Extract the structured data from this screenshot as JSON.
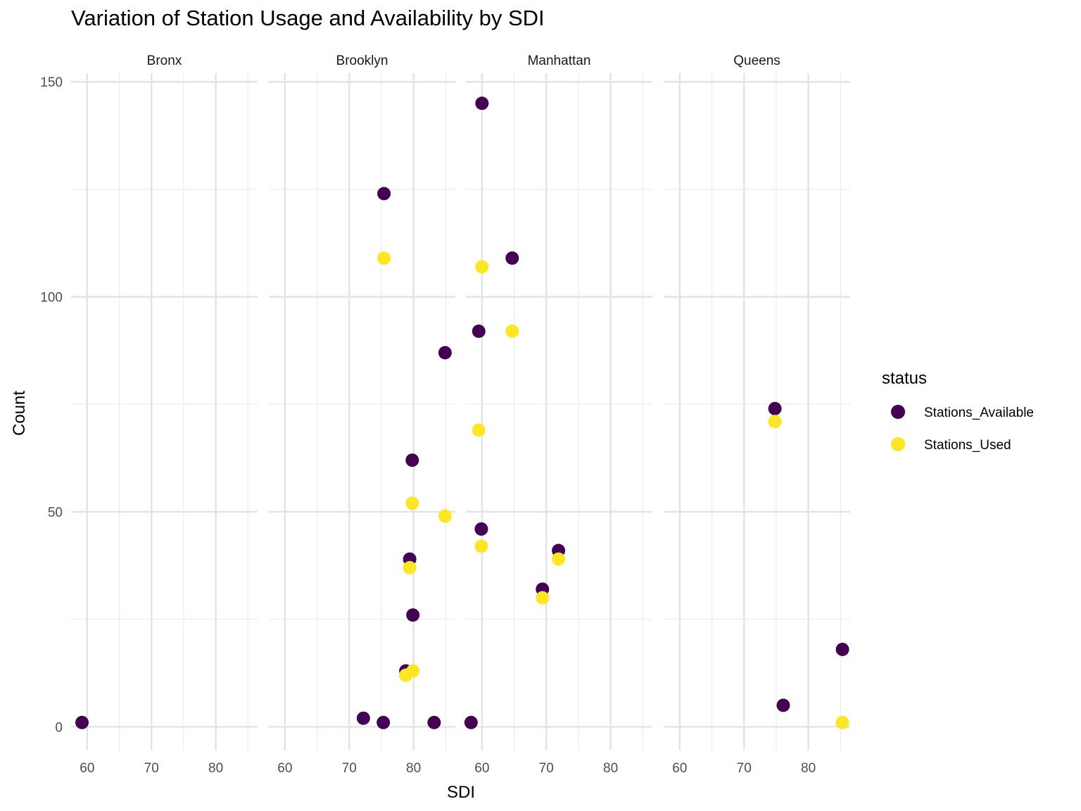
{
  "chart_data": {
    "type": "scatter",
    "title": "Variation of Station Usage and Availability by SDI",
    "xlabel": "SDI",
    "ylabel": "Count",
    "facet_by": "borough",
    "facets": [
      "Bronx",
      "Brooklyn",
      "Manhattan",
      "Queens"
    ],
    "xlim": [
      57.5,
      86.5
    ],
    "ylim": [
      -5.5,
      152
    ],
    "x_ticks": [
      60,
      70,
      80
    ],
    "y_ticks": [
      0,
      50,
      100,
      150
    ],
    "grid": true,
    "legend": {
      "title": "status",
      "position": "right",
      "entries": [
        {
          "name": "Stations_Available",
          "color": "#440154"
        },
        {
          "name": "Stations_Used",
          "color": "#FDE725"
        }
      ]
    },
    "series": [
      {
        "name": "Stations_Available",
        "color": "#440154",
        "points": [
          {
            "facet": "Bronx",
            "x": 59.2,
            "y": 1
          },
          {
            "facet": "Brooklyn",
            "x": 75.4,
            "y": 124
          },
          {
            "facet": "Brooklyn",
            "x": 84.9,
            "y": 87
          },
          {
            "facet": "Brooklyn",
            "x": 79.8,
            "y": 62
          },
          {
            "facet": "Brooklyn",
            "x": 79.4,
            "y": 39
          },
          {
            "facet": "Brooklyn",
            "x": 79.9,
            "y": 26
          },
          {
            "facet": "Brooklyn",
            "x": 78.8,
            "y": 13
          },
          {
            "facet": "Brooklyn",
            "x": 72.2,
            "y": 2
          },
          {
            "facet": "Brooklyn",
            "x": 75.3,
            "y": 1
          },
          {
            "facet": "Brooklyn",
            "x": 83.2,
            "y": 1
          },
          {
            "facet": "Manhattan",
            "x": 60.0,
            "y": 145
          },
          {
            "facet": "Manhattan",
            "x": 64.7,
            "y": 109
          },
          {
            "facet": "Manhattan",
            "x": 59.5,
            "y": 92
          },
          {
            "facet": "Manhattan",
            "x": 59.9,
            "y": 46
          },
          {
            "facet": "Manhattan",
            "x": 71.9,
            "y": 41
          },
          {
            "facet": "Manhattan",
            "x": 69.4,
            "y": 32
          },
          {
            "facet": "Manhattan",
            "x": 58.3,
            "y": 1
          },
          {
            "facet": "Queens",
            "x": 74.8,
            "y": 74
          },
          {
            "facet": "Queens",
            "x": 85.3,
            "y": 18
          },
          {
            "facet": "Queens",
            "x": 76.1,
            "y": 5
          }
        ]
      },
      {
        "name": "Stations_Used",
        "color": "#FDE725",
        "points": [
          {
            "facet": "Brooklyn",
            "x": 75.4,
            "y": 109
          },
          {
            "facet": "Brooklyn",
            "x": 79.8,
            "y": 52
          },
          {
            "facet": "Brooklyn",
            "x": 84.9,
            "y": 49
          },
          {
            "facet": "Brooklyn",
            "x": 79.4,
            "y": 37
          },
          {
            "facet": "Brooklyn",
            "x": 78.8,
            "y": 12
          },
          {
            "facet": "Brooklyn",
            "x": 79.9,
            "y": 13
          },
          {
            "facet": "Manhattan",
            "x": 60.0,
            "y": 107
          },
          {
            "facet": "Manhattan",
            "x": 64.7,
            "y": 92
          },
          {
            "facet": "Manhattan",
            "x": 59.5,
            "y": 69
          },
          {
            "facet": "Manhattan",
            "x": 59.9,
            "y": 42
          },
          {
            "facet": "Manhattan",
            "x": 71.9,
            "y": 39
          },
          {
            "facet": "Manhattan",
            "x": 69.4,
            "y": 30
          },
          {
            "facet": "Queens",
            "x": 74.8,
            "y": 71
          },
          {
            "facet": "Queens",
            "x": 85.3,
            "y": 1
          }
        ]
      }
    ]
  }
}
